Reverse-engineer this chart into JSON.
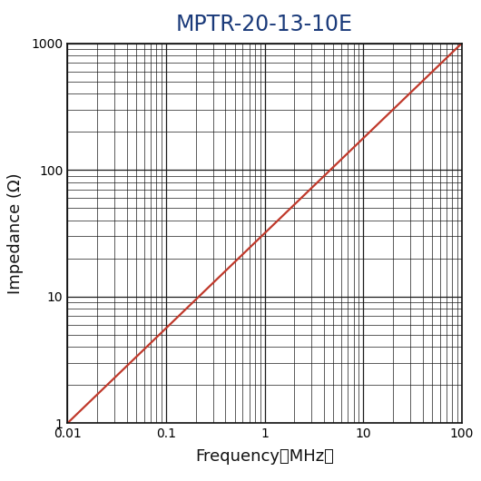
{
  "title": "MPTR-20-13-10E",
  "xlabel": "Frequency（MHz）",
  "ylabel": "Impedance (Ω)",
  "xmin": 0.01,
  "xmax": 100,
  "ymin": 1,
  "ymax": 1000,
  "line_color": "#c0392b",
  "line_width": 1.6,
  "title_color": "#1a3a7a",
  "title_fontsize": 17,
  "label_fontsize": 13,
  "tick_fontsize": 10,
  "grid_major_color": "#1a1a1a",
  "grid_minor_color": "#1a1a1a",
  "grid_major_linewidth": 0.9,
  "grid_minor_linewidth": 0.5,
  "bg_color": "#ffffff",
  "figsize": [
    5.3,
    5.3
  ],
  "dpi": 100
}
